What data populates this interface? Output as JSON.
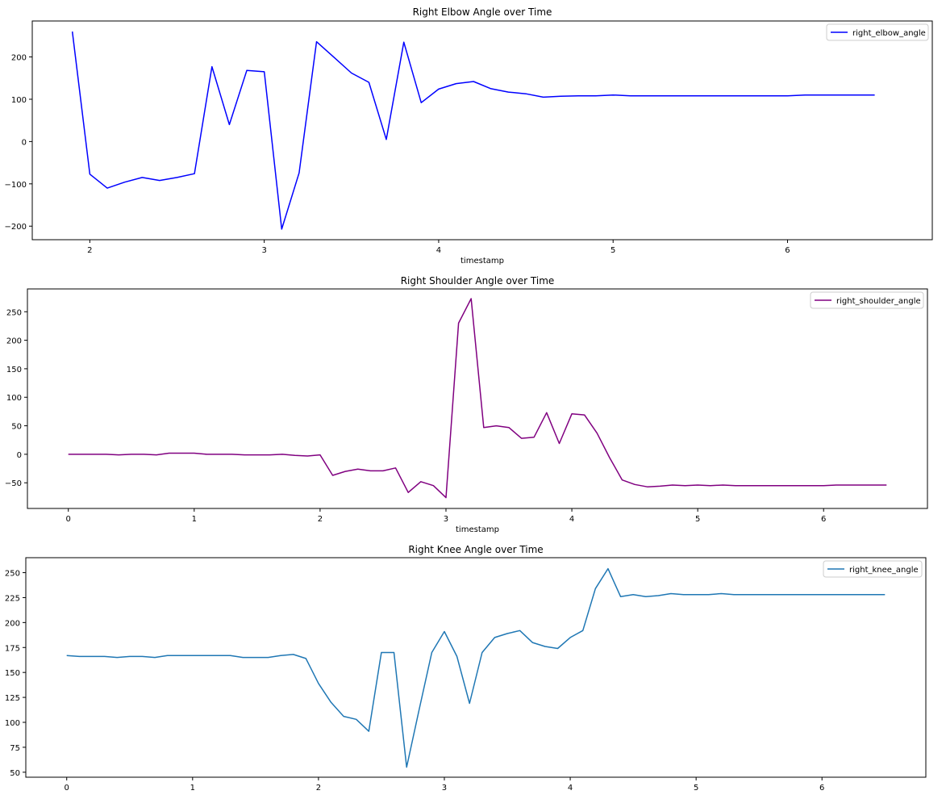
{
  "chart_data": [
    {
      "type": "line",
      "title": "Right Elbow Angle over Time",
      "xlabel": "timestamp",
      "ylabel": "",
      "xlim": [
        1.67,
        6.83
      ],
      "ylim": [
        -232,
        285
      ],
      "xticks": [
        2,
        3,
        4,
        5,
        6
      ],
      "yticks": [
        -200,
        -100,
        0,
        100,
        200
      ],
      "legend": "top-right",
      "grid": false,
      "series": [
        {
          "name": "right_elbow_angle",
          "color": "#0000ff",
          "x": [
            1.9,
            2.0,
            2.1,
            2.2,
            2.3,
            2.4,
            2.5,
            2.6,
            2.7,
            2.8,
            2.9,
            3.0,
            3.1,
            3.2,
            3.3,
            3.4,
            3.5,
            3.6,
            3.7,
            3.8,
            3.9,
            4.0,
            4.1,
            4.2,
            4.3,
            4.4,
            4.5,
            4.6,
            4.7,
            4.8,
            4.9,
            5.0,
            5.1,
            5.2,
            5.3,
            5.4,
            5.5,
            5.6,
            5.7,
            5.8,
            5.9,
            6.0,
            6.1,
            6.2,
            6.3,
            6.4,
            6.5
          ],
          "values": [
            260,
            -77,
            -110,
            -96,
            -85,
            -92,
            -85,
            -76,
            177,
            40,
            168,
            165,
            -207,
            -74,
            236,
            199,
            162,
            140,
            5,
            235,
            92,
            124,
            137,
            142,
            125,
            117,
            113,
            105,
            107,
            108,
            108,
            110,
            108,
            108,
            108,
            108,
            108,
            108,
            108,
            108,
            108,
            108,
            110,
            110,
            110,
            110,
            110
          ]
        }
      ]
    },
    {
      "type": "line",
      "title": "Right Shoulder Angle over Time",
      "xlabel": "timestamp",
      "ylabel": "",
      "xlim": [
        -0.325,
        6.825
      ],
      "ylim": [
        -95,
        290
      ],
      "xticks": [
        0,
        1,
        2,
        3,
        4,
        5,
        6
      ],
      "yticks": [
        -50,
        0,
        50,
        100,
        150,
        200,
        250
      ],
      "legend": "top-right",
      "grid": false,
      "series": [
        {
          "name": "right_shoulder_angle",
          "color": "#800080",
          "x": [
            0.0,
            0.1,
            0.2,
            0.3,
            0.4,
            0.5,
            0.6,
            0.7,
            0.8,
            0.9,
            1.0,
            1.1,
            1.2,
            1.3,
            1.4,
            1.5,
            1.6,
            1.7,
            1.8,
            1.9,
            2.0,
            2.1,
            2.2,
            2.3,
            2.4,
            2.5,
            2.6,
            2.7,
            2.8,
            2.9,
            3.0,
            3.1,
            3.2,
            3.3,
            3.4,
            3.5,
            3.6,
            3.7,
            3.8,
            3.9,
            4.0,
            4.1,
            4.2,
            4.3,
            4.4,
            4.5,
            4.6,
            4.7,
            4.8,
            4.9,
            5.0,
            5.1,
            5.2,
            5.3,
            5.4,
            5.5,
            5.6,
            5.7,
            5.8,
            5.9,
            6.0,
            6.1,
            6.2,
            6.3,
            6.4,
            6.5
          ],
          "values": [
            0,
            0,
            0,
            0,
            -1,
            0,
            0,
            -1,
            2,
            2,
            2,
            0,
            0,
            0,
            -1,
            -1,
            -1,
            0,
            -2,
            -3,
            -1,
            -37,
            -30,
            -26,
            -29,
            -29,
            -24,
            -67,
            -48,
            -55,
            -76,
            230,
            273,
            47,
            50,
            47,
            28,
            30,
            73,
            19,
            71,
            69,
            37,
            -6,
            -45,
            -53,
            -57,
            -56,
            -54,
            -55,
            -54,
            -55,
            -54,
            -55,
            -55,
            -55,
            -55,
            -55,
            -55,
            -55,
            -55,
            -54,
            -54,
            -54,
            -54,
            -54
          ]
        }
      ]
    },
    {
      "type": "line",
      "title": "Right Knee Angle over Time",
      "xlabel": "",
      "ylabel": "",
      "xlim": [
        -0.325,
        6.825
      ],
      "ylim": [
        45,
        265
      ],
      "xticks": [
        0,
        1,
        2,
        3,
        4,
        5,
        6
      ],
      "yticks": [
        50,
        75,
        100,
        125,
        150,
        175,
        200,
        225,
        250
      ],
      "legend": "top-right",
      "grid": false,
      "series": [
        {
          "name": "right_knee_angle",
          "color": "#1f77b4",
          "x": [
            0.0,
            0.1,
            0.2,
            0.3,
            0.4,
            0.5,
            0.6,
            0.7,
            0.8,
            0.9,
            1.0,
            1.1,
            1.2,
            1.3,
            1.4,
            1.5,
            1.6,
            1.7,
            1.8,
            1.9,
            2.0,
            2.1,
            2.2,
            2.3,
            2.4,
            2.5,
            2.6,
            2.7,
            2.8,
            2.9,
            3.0,
            3.1,
            3.2,
            3.3,
            3.4,
            3.5,
            3.6,
            3.7,
            3.8,
            3.9,
            4.0,
            4.1,
            4.2,
            4.3,
            4.4,
            4.5,
            4.6,
            4.7,
            4.8,
            4.9,
            5.0,
            5.1,
            5.2,
            5.3,
            5.4,
            5.5,
            5.6,
            5.7,
            5.8,
            5.9,
            6.0,
            6.1,
            6.2,
            6.3,
            6.4,
            6.5
          ],
          "values": [
            167,
            166,
            166,
            166,
            165,
            166,
            166,
            165,
            167,
            167,
            167,
            167,
            167,
            167,
            165,
            165,
            165,
            167,
            168,
            164,
            139,
            120,
            106,
            103,
            91,
            170,
            170,
            55,
            113,
            170,
            191,
            166,
            119,
            170,
            185,
            189,
            192,
            180,
            176,
            174,
            185,
            192,
            234,
            254,
            226,
            228,
            226,
            227,
            229,
            228,
            228,
            228,
            229,
            228,
            228,
            228,
            228,
            228,
            228,
            228,
            228,
            228,
            228,
            228,
            228,
            228
          ]
        }
      ]
    }
  ]
}
